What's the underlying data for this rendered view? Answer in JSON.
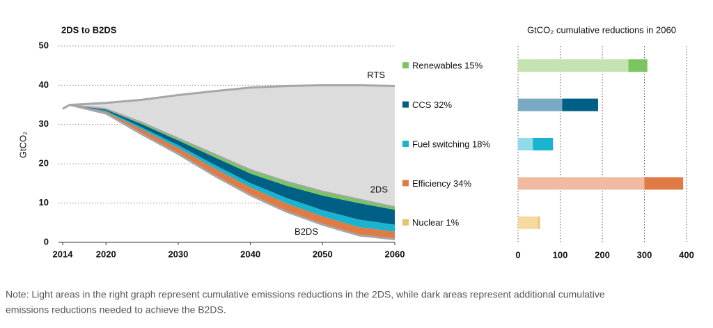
{
  "chart_data": [
    {
      "type": "area",
      "title": "2DS to B2DS",
      "y_label": "GtCO₂",
      "x": [
        2014,
        2015,
        2020,
        2025,
        2030,
        2035,
        2040,
        2045,
        2050,
        2055,
        2060
      ],
      "xlim": [
        2014,
        2060
      ],
      "xticks": [
        2014,
        2020,
        2030,
        2040,
        2050,
        2060
      ],
      "ylim": [
        0,
        50
      ],
      "yticks": [
        0,
        10,
        20,
        30,
        40,
        50
      ],
      "grid": true,
      "series": [
        {
          "name": "RTS",
          "color": "#a6a6a6",
          "fill": "#dcdcdc",
          "values": [
            34,
            35,
            35.5,
            36.3,
            37.5,
            38.5,
            39.4,
            39.8,
            40,
            40,
            39.8
          ]
        },
        {
          "name": "B2DS",
          "color": "#a6a6a6",
          "values": [
            34,
            35,
            32.8,
            27.5,
            22.5,
            17,
            12,
            7.8,
            4.5,
            1.8,
            0.8
          ]
        }
      ],
      "stack_label": "2DS",
      "stack": [
        {
          "color": "#e8c36a",
          "values": [
            0,
            0,
            0,
            0.05,
            0.05,
            0.1,
            0.1,
            0.1,
            0.1,
            0.1,
            0.1
          ]
        },
        {
          "color": "#e07b45",
          "values": [
            0,
            0,
            0.5,
            1.2,
            1.5,
            1.8,
            1.9,
            2.0,
            2.0,
            2.0,
            1.8
          ]
        },
        {
          "color": "#1ab3d0",
          "values": [
            0,
            0,
            0.2,
            0.5,
            0.7,
            0.9,
            1.1,
            1.4,
            1.6,
            1.9,
            1.8
          ]
        },
        {
          "color": "#005f84",
          "values": [
            0,
            0,
            0.3,
            0.8,
            1.2,
            1.9,
            2.4,
            3.1,
            3.7,
            4.2,
            3.8
          ]
        },
        {
          "color": "#7bc462",
          "values": [
            0,
            0,
            0.2,
            0.45,
            0.55,
            0.8,
            1.0,
            1.1,
            1.1,
            1.0,
            0.7
          ]
        }
      ]
    },
    {
      "type": "hbar",
      "title": "GtCO₂ cumulative reductions in 2060",
      "categories": [
        "Renewables 15%",
        "CCS 32%",
        "Fuel switching 18%",
        "Efficiency 34%",
        "Nuclear 1%"
      ],
      "xlim": [
        0,
        400
      ],
      "xticks": [
        0,
        100,
        200,
        300,
        400
      ],
      "grid": true,
      "series": [
        {
          "colors": [
            "#c5e3b1",
            "#7aa9c3",
            "#8fdbe9",
            "#f0bba0",
            "#f5d9a0"
          ],
          "values": [
            262,
            105,
            35,
            300,
            48
          ]
        },
        {
          "colors": [
            "#7bc462",
            "#005f84",
            "#1ab3d0",
            "#e07b45",
            "#e8c36a"
          ],
          "values": [
            45,
            85,
            48,
            92,
            4
          ]
        }
      ]
    }
  ],
  "note": [
    "Note: Light areas in the right graph represent cumulative emissions reductions in the 2DS, while dark areas represent additional cumulative",
    "emissions reductions needed to achieve the B2DS."
  ]
}
